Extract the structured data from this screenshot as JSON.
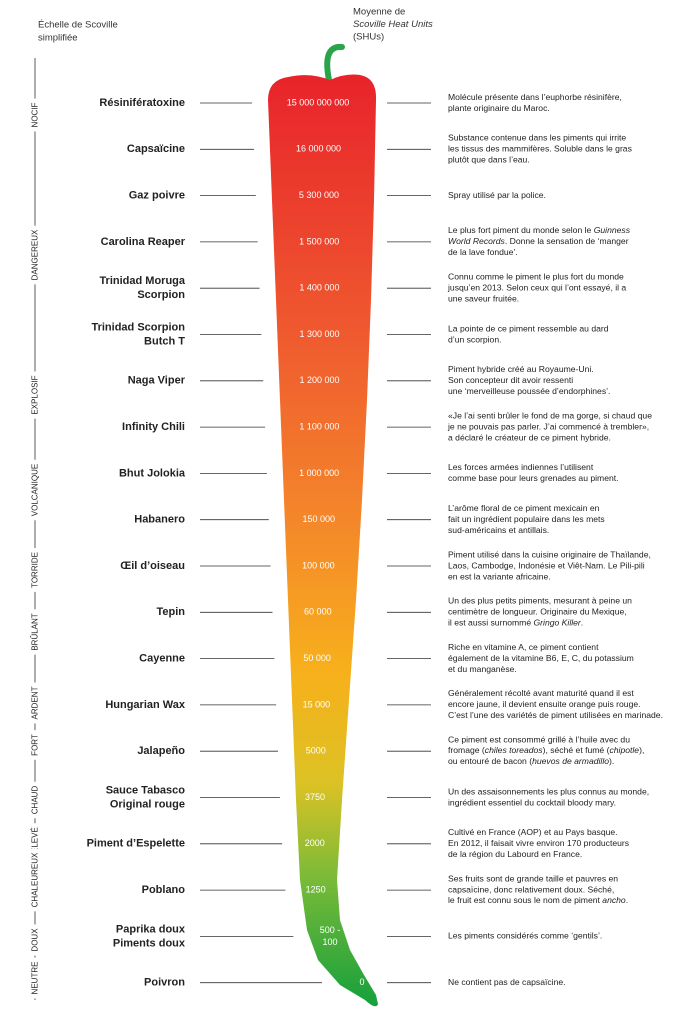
{
  "header": {
    "scale_title": [
      "Échelle de Scoville",
      "simplifiée"
    ],
    "unit_title": [
      "Moyenne de",
      "Scoville Heat Units",
      "(SHUs)"
    ]
  },
  "scale": [
    {
      "label": "NOCIF",
      "color": "#e3262c"
    },
    {
      "label": "DANGEREUX",
      "color": "#ea4236"
    },
    {
      "label": "EXPLOSIF",
      "color": "#ef6a36"
    },
    {
      "label": "VOLCANIQUE",
      "color": "#f2862e"
    },
    {
      "label": "TORRIDE",
      "color": "#f49a26"
    },
    {
      "label": "BRÛLANT",
      "color": "#f4a523"
    },
    {
      "label": "ARDENT",
      "color": "#f2b41f"
    },
    {
      "label": "FORT",
      "color": "#e4c21e"
    },
    {
      "label": "CHAUD",
      "color": "#c5c72a"
    },
    {
      "label": "RELEVÉ",
      "color": "#7cbc3b"
    },
    {
      "label": "CHALEUREUX",
      "color": "#3fa93e"
    },
    {
      "label": "DOUX",
      "color": "#2ea840"
    },
    {
      "label": "NEUTRE",
      "color": "#27a445"
    }
  ],
  "rows": [
    {
      "name": "Résinifératoxine",
      "value": "15 000 000 000",
      "description": [
        "Molécule présente dans l’euphorbe résinifère,",
        "plante originaire du Maroc."
      ]
    },
    {
      "name": "Capsaïcine",
      "value": "16 000 000",
      "description": [
        "Substance contenue dans les piments qui irrite",
        "les tissus des mammifères. Soluble dans le gras",
        "plutôt que dans l’eau."
      ]
    },
    {
      "name": "Gaz poivre",
      "value": "5 300 000",
      "description": [
        "Spray utilisé par la police."
      ]
    },
    {
      "name": "Carolina Reaper",
      "value": "1 500 000",
      "description": [
        [
          "Le plus fort piment du monde selon le ",
          {
            "italic": "Guinness"
          }
        ],
        [
          {
            "italic": "World Records"
          },
          ". Donne la sensation de ‘manger"
        ],
        "de la lave fondue’."
      ]
    },
    {
      "name": [
        "Trinidad Moruga",
        "Scorpion"
      ],
      "value": "1 400 000",
      "description": [
        "Connu comme le piment le plus fort du monde",
        "jusqu’en 2013. Selon ceux qui l’ont essayé, il a",
        "une saveur fruitée."
      ]
    },
    {
      "name": [
        "Trinidad Scorpion",
        "Butch T"
      ],
      "value": "1 300 000",
      "description": [
        "La pointe de ce piment ressemble au dard",
        "d’un scorpion."
      ]
    },
    {
      "name": "Naga Viper",
      "value": "1 200 000",
      "description": [
        "Piment hybride créé au Royaume-Uni.",
        "Son concepteur dit avoir ressenti",
        "une ‘merveilleuse poussée d’endorphines’."
      ]
    },
    {
      "name": "Infinity Chili",
      "value": "1 100 000",
      "description": [
        "«Je l’ai senti brûler le fond de ma gorge, si chaud que",
        "je ne pouvais pas parler. J’ai commencé à trembler»,",
        "a déclaré le créateur de ce piment hybride."
      ]
    },
    {
      "name": "Bhut Jolokia",
      "value": "1 000 000",
      "description": [
        "Les forces armées indiennes l’utilisent",
        "comme base pour leurs grenades au piment."
      ]
    },
    {
      "name": "Habanero",
      "value": "150 000",
      "description": [
        "L’arôme floral de ce piment mexicain en",
        "fait un ingrédient populaire dans les mets",
        "sud-américains et antillais."
      ]
    },
    {
      "name": "Œil d’oiseau",
      "value": "100 000",
      "description": [
        "Piment utilisé dans la cuisine originaire de Thaïlande,",
        "Laos, Cambodge, Indonésie et Viêt-Nam. Le Pili-pili",
        "en est la variante africaine."
      ]
    },
    {
      "name": "Tepin",
      "value": "60 000",
      "description": [
        "Un des plus petits piments, mesurant à peine un",
        "centimètre de longueur. Originaire du Mexique,",
        [
          "il est aussi surnommé ",
          {
            "italic": "Gringo Killer"
          },
          "."
        ]
      ]
    },
    {
      "name": "Cayenne",
      "value": "50 000",
      "description": [
        "Riche en vitamine A, ce piment contient",
        "également de la vitamine B6, E, C, du potassium",
        "et du manganèse."
      ]
    },
    {
      "name": "Hungarian Wax",
      "value": "15 000",
      "description": [
        "Généralement récolté avant maturité quand il est",
        "encore jaune, il devient ensuite orange puis rouge.",
        "C’est l’une des variétés de piment utilisées en marinade."
      ]
    },
    {
      "name": "Jalapeño",
      "value": "5000",
      "description": [
        "Ce piment est consommé grillé à l’huile avec du",
        [
          "fromage (",
          {
            "italic": "chiles toreados"
          },
          "), séché et fumé (",
          {
            "italic": "chipotle"
          },
          "),"
        ],
        [
          "ou entouré de bacon (",
          {
            "italic": "huevos de armadillo"
          },
          ")."
        ]
      ]
    },
    {
      "name": [
        "Sauce Tabasco",
        "Original rouge"
      ],
      "value": "3750",
      "description": [
        "Un des assaisonnements les plus connus au monde,",
        "ingrédient essentiel du cocktail bloody mary."
      ]
    },
    {
      "name": "Piment d’Espelette",
      "value": "2000",
      "description": [
        "Cultivé en France (AOP) et au Pays basque.",
        "En 2012, il faisait vivre environ 170 producteurs",
        "de la région du Labourd en France."
      ]
    },
    {
      "name": "Poblano",
      "value": "1250",
      "description": [
        "Ses fruits sont de grande taille et pauvres en",
        "capsaïcine, donc relativement doux. Séché,",
        [
          "le fruit est connu sous le nom de piment ",
          {
            "italic": "ancho"
          },
          "."
        ]
      ]
    },
    {
      "name": [
        "Paprika doux",
        "Piments doux"
      ],
      "value": [
        "500 -",
        "100"
      ],
      "description": [
        "Les piments considérés comme ‘gentils’."
      ]
    },
    {
      "name": "Poivron",
      "value": "0",
      "description": [
        "Ne contient pas de capsaïcine."
      ]
    }
  ]
}
